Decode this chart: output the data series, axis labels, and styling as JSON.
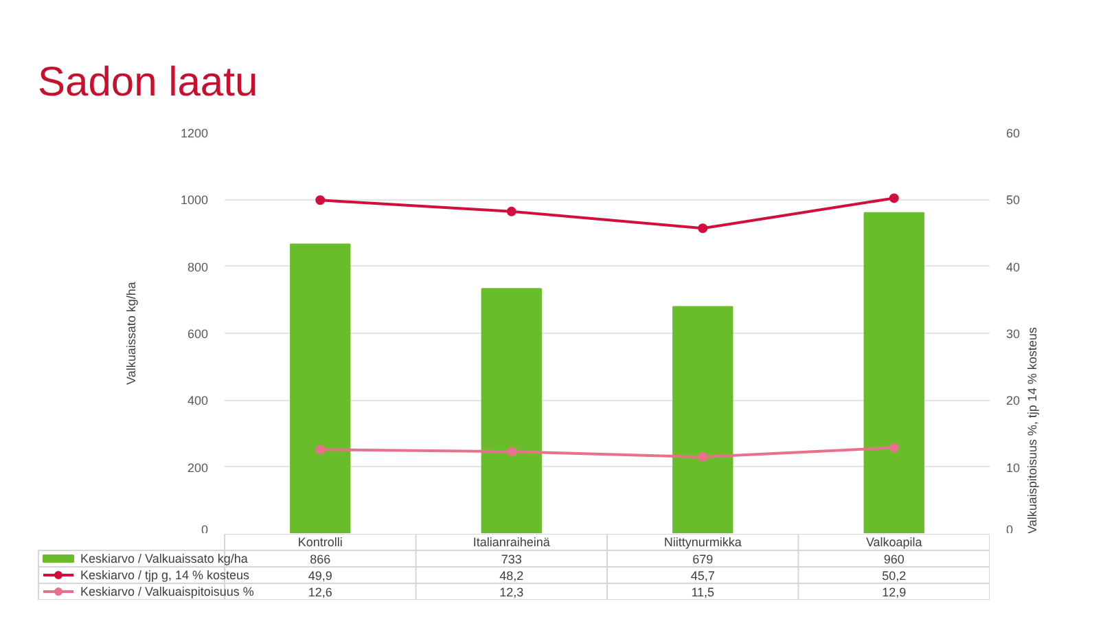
{
  "chart_data": {
    "type": "bar",
    "title": "Sadon laatu",
    "ylabel": "Valkuaissato kg/ha",
    "y2label": "Valkuaispitoisuus %, tjp 14 % kosteus",
    "categories": [
      "Kontrolli",
      "Italianraiheinä",
      "Niittynurmikka",
      "Valkoapila"
    ],
    "series": [
      {
        "name": "Keskiarvo / Valkuaissato kg/ha",
        "color": "#6abd2a",
        "values": [
          866,
          733,
          679,
          960
        ],
        "value_labels": [
          "866",
          "733",
          "679",
          "960"
        ]
      },
      {
        "name": "Keskiarvo / tjp g, 14 % kosteus",
        "type": "line",
        "axis": "y2",
        "color": "#d20f3c",
        "values": [
          49.9,
          48.2,
          45.7,
          50.2
        ],
        "value_labels": [
          "49,9",
          "48,2",
          "45,7",
          "50,2"
        ]
      },
      {
        "name": "Keskiarvo / Valkuaispitoisuus %",
        "type": "line",
        "axis": "y2",
        "color": "#e8728c",
        "values": [
          12.6,
          12.3,
          11.5,
          12.9
        ],
        "value_labels": [
          "12,6",
          "12,3",
          "11,5",
          "12,9"
        ]
      }
    ],
    "ylim": [
      0,
      1200
    ],
    "yticks": [
      0,
      200,
      400,
      600,
      800,
      1000,
      1200
    ],
    "y2lim": [
      0,
      60
    ],
    "y2ticks": [
      0,
      10,
      20,
      30,
      40,
      50,
      60
    ],
    "grid": "y",
    "legend": "bottom",
    "marker": "circle",
    "line_style": "solid"
  }
}
